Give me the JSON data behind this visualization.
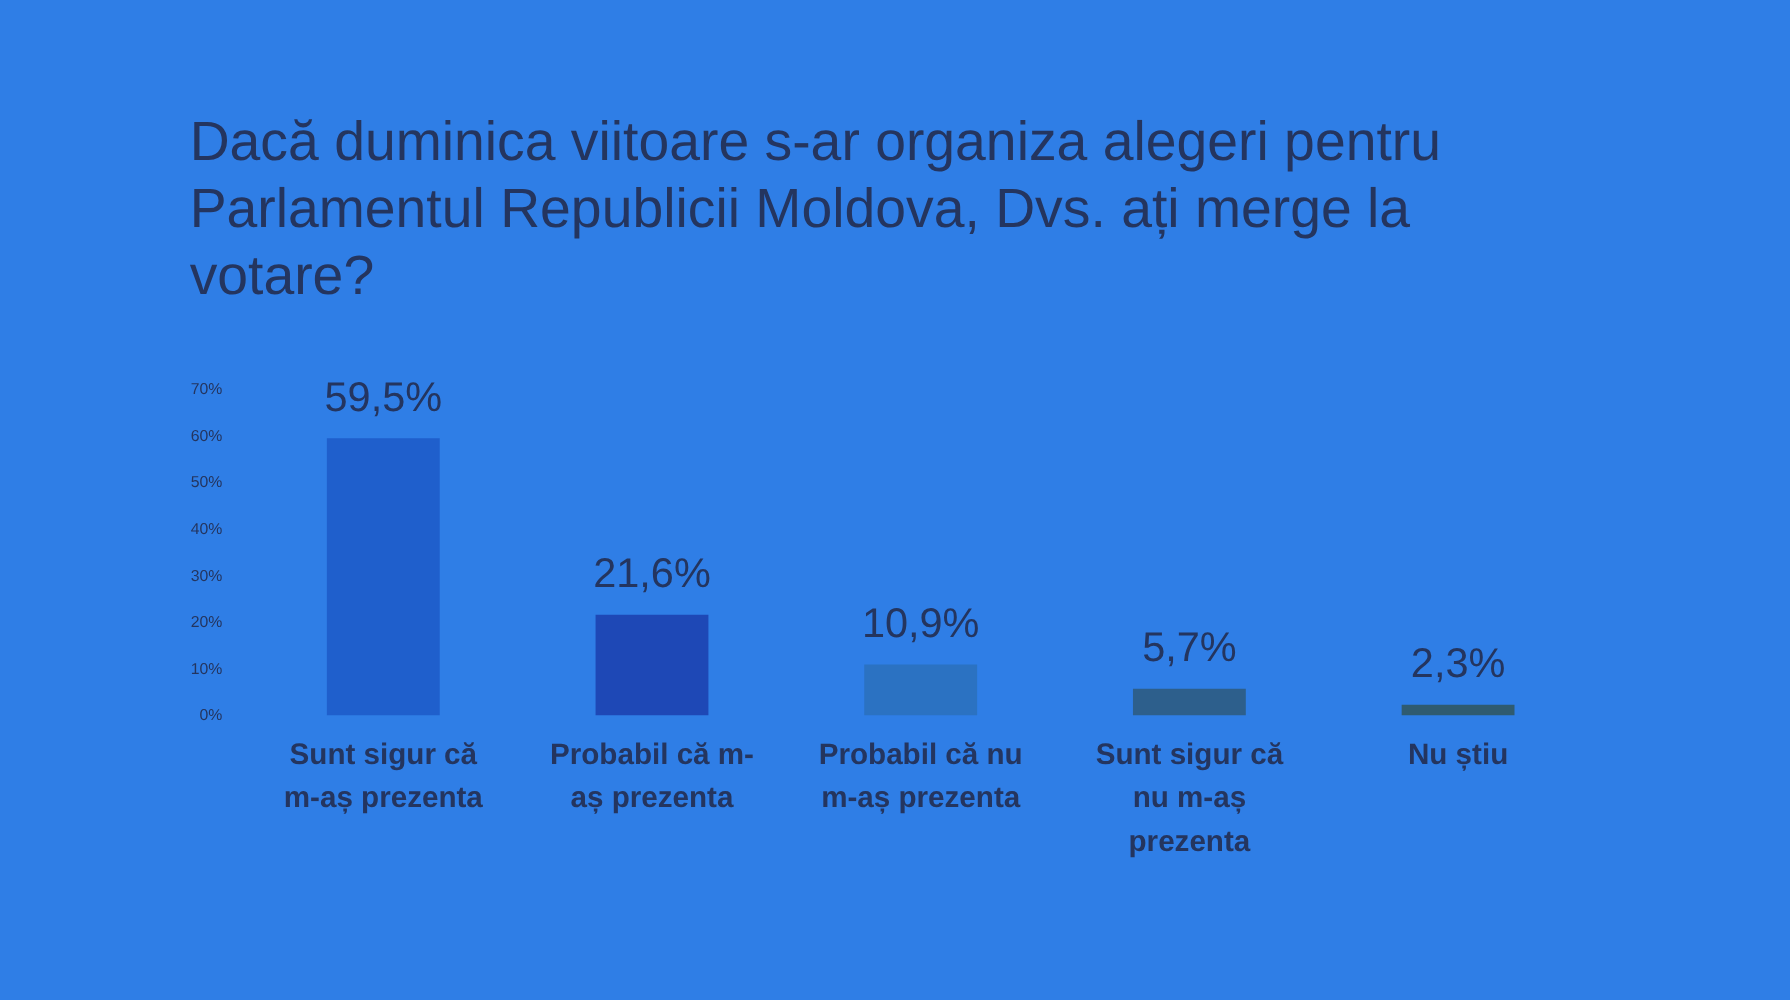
{
  "chart_data": {
    "type": "bar",
    "title": "Dacă duminica viitoare s-ar organiza alegeri pentru Parlamentul Republicii Moldova, Dvs. ați merge la votare?",
    "categories": [
      "Sunt sigur că m-aș prezenta",
      "Probabil că m-aș prezenta",
      "Probabil că nu m-aș prezenta",
      "Sunt sigur că nu m-aș prezenta",
      "Nu știu"
    ],
    "values": [
      59.5,
      21.6,
      10.9,
      5.7,
      2.3
    ],
    "value_labels": [
      "59,5%",
      "21,6%",
      "10,9%",
      "5,7%",
      "2,3%"
    ],
    "colors": [
      "#1f5fcc",
      "#1e48b6",
      "#2b72c2",
      "#2d5f8c",
      "#2f5b70"
    ],
    "ylim": [
      0,
      70
    ],
    "yticks": [
      {
        "value": 0,
        "label": "0%"
      },
      {
        "value": 10,
        "label": "10%"
      },
      {
        "value": 20,
        "label": "20%"
      },
      {
        "value": 30,
        "label": "30%"
      },
      {
        "value": 40,
        "label": "40%"
      },
      {
        "value": 50,
        "label": "50%"
      },
      {
        "value": 60,
        "label": "60%"
      },
      {
        "value": 70,
        "label": "70%"
      }
    ],
    "grid": false
  }
}
